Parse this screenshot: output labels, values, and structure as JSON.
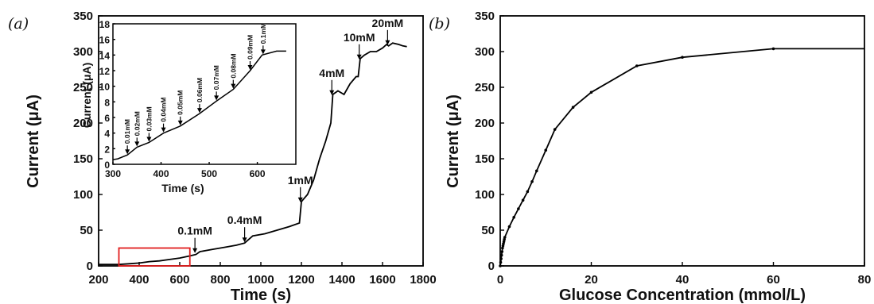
{
  "chart_data": [
    {
      "type": "line",
      "panel_label": "(a)",
      "title": "",
      "xlabel": "Time (s)",
      "ylabel": "Current (μA)",
      "xlim": [
        200,
        1800
      ],
      "ylim": [
        0,
        350
      ],
      "xticks": [
        200,
        400,
        600,
        800,
        1000,
        1200,
        1400,
        1600,
        1800
      ],
      "yticks": [
        0,
        50,
        100,
        150,
        200,
        250,
        300,
        350
      ],
      "grid": false,
      "line_color": "#000000",
      "series": [
        {
          "x": [
            200,
            300,
            350,
            400,
            450,
            500,
            550,
            600,
            650,
            680,
            700,
            760,
            820,
            880,
            920,
            960,
            1020,
            1080,
            1140,
            1190,
            1200,
            1230,
            1260,
            1290,
            1320,
            1345,
            1355,
            1380,
            1410,
            1440,
            1470,
            1480,
            1490,
            1510,
            1540,
            1570,
            1600,
            1620,
            1630,
            1650,
            1680,
            1700,
            1720
          ],
          "y": [
            2,
            2,
            3,
            4,
            6,
            7,
            9,
            11,
            14,
            16,
            20,
            23,
            26,
            29,
            32,
            42,
            45,
            50,
            55,
            60,
            90,
            100,
            120,
            150,
            175,
            200,
            240,
            245,
            240,
            255,
            265,
            265,
            290,
            295,
            300,
            300,
            305,
            310,
            308,
            312,
            310,
            308,
            307
          ]
        }
      ],
      "annotations": [
        {
          "text": "0.1mM",
          "x": 675,
          "y": 17
        },
        {
          "text": "0.4mM",
          "x": 920,
          "y": 32
        },
        {
          "text": "1mM",
          "x": 1195,
          "y": 88
        },
        {
          "text": "4mM",
          "x": 1350,
          "y": 238
        },
        {
          "text": "10mM",
          "x": 1485,
          "y": 288
        },
        {
          "text": "20mM",
          "x": 1625,
          "y": 308
        }
      ],
      "highlight_box": {
        "color": "#e11d1d",
        "x": [
          300,
          650
        ],
        "y": [
          0,
          25
        ]
      }
    },
    {
      "type": "line",
      "inset_of": "(a)",
      "title": "",
      "xlabel": "Time (s)",
      "ylabel": "Current (μA)",
      "xlim": [
        300,
        680
      ],
      "ylim": [
        0,
        18
      ],
      "xticks": [
        300,
        400,
        500,
        600
      ],
      "yticks": [
        0,
        2,
        4,
        6,
        8,
        10,
        12,
        14,
        16,
        18
      ],
      "series": [
        {
          "x": [
            300,
            310,
            330,
            350,
            375,
            405,
            440,
            480,
            515,
            550,
            585,
            610,
            640,
            660
          ],
          "y": [
            0.6,
            0.7,
            1.2,
            2.2,
            2.8,
            4.0,
            4.9,
            6.5,
            8.1,
            9.6,
            12.0,
            14.0,
            14.5,
            14.5
          ]
        }
      ],
      "annotations": [
        {
          "text": "0.01mM",
          "x": 330,
          "y": 1.2
        },
        {
          "text": "0.02mM",
          "x": 350,
          "y": 2.2
        },
        {
          "text": "0.03mM",
          "x": 375,
          "y": 2.8
        },
        {
          "text": "0.04mM",
          "x": 405,
          "y": 4.0
        },
        {
          "text": "0.05mM",
          "x": 440,
          "y": 4.9
        },
        {
          "text": "0.06mM",
          "x": 480,
          "y": 6.5
        },
        {
          "text": "0.07mM",
          "x": 515,
          "y": 8.1
        },
        {
          "text": "0.08mM",
          "x": 550,
          "y": 9.6
        },
        {
          "text": "0.09mM",
          "x": 585,
          "y": 12.0
        },
        {
          "text": "0.1mM",
          "x": 612,
          "y": 14.0
        }
      ]
    },
    {
      "type": "line",
      "panel_label": "(b)",
      "title": "",
      "xlabel": "Glucose Concentration (mmol/L)",
      "ylabel": "Current (μA)",
      "xlim": [
        0,
        80
      ],
      "ylim": [
        0,
        350
      ],
      "xticks": [
        0,
        20,
        40,
        60,
        80
      ],
      "yticks": [
        0,
        50,
        100,
        150,
        200,
        250,
        300,
        350
      ],
      "grid": false,
      "line_color": "#000000",
      "series": [
        {
          "x": [
            0,
            0.1,
            0.2,
            0.3,
            0.4,
            0.5,
            0.6,
            0.7,
            0.8,
            0.9,
            1,
            2,
            3,
            4,
            5,
            6,
            7,
            8,
            10,
            12,
            16,
            20,
            30,
            40,
            60,
            80
          ],
          "y": [
            0,
            5,
            10,
            15,
            20,
            25,
            28,
            31,
            34,
            37,
            40,
            55,
            68,
            80,
            92,
            104,
            118,
            133,
            162,
            191,
            222,
            243,
            280,
            292,
            304,
            304
          ],
          "marker_until_index": 24
        }
      ]
    }
  ]
}
